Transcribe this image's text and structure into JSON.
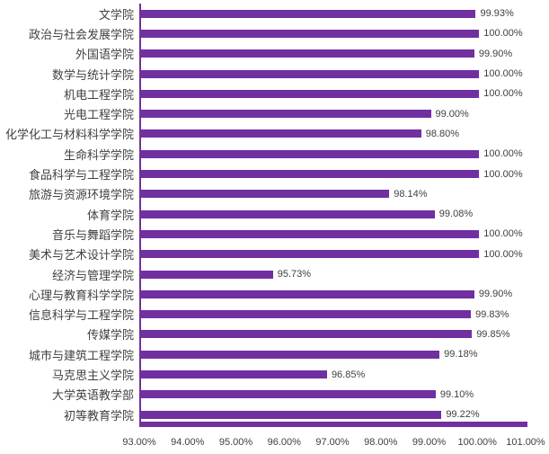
{
  "chart_data": {
    "type": "bar",
    "orientation": "horizontal",
    "title": "",
    "xlabel": "",
    "ylabel": "",
    "categories": [
      "文学院",
      "政治与社会发展学院",
      "外国语学院",
      "数学与统计学院",
      "机电工程学院",
      "光电工程学院",
      "化学化工与材料科学学院",
      "生命科学学院",
      "食品科学与工程学院",
      "旅游与资源环境学院",
      "体育学院",
      "音乐与舞蹈学院",
      "美术与艺术设计学院",
      "经济与管理学院",
      "心理与教育科学学院",
      "信息科学与工程学院",
      "传媒学院",
      "城市与建筑工程学院",
      "马克思主义学院",
      "大学英语教学部",
      "初等教育学院"
    ],
    "values": [
      99.93,
      100.0,
      99.9,
      100.0,
      100.0,
      99.0,
      98.8,
      100.0,
      100.0,
      98.14,
      99.08,
      100.0,
      100.0,
      95.73,
      99.9,
      99.83,
      99.85,
      99.18,
      96.85,
      99.1,
      99.22
    ],
    "value_labels": [
      "99.93%",
      "100.00%",
      "99.90%",
      "100.00%",
      "100.00%",
      "99.00%",
      "98.80%",
      "100.00%",
      "100.00%",
      "98.14%",
      "99.08%",
      "100.00%",
      "100.00%",
      "95.73%",
      "99.90%",
      "99.83%",
      "99.85%",
      "99.18%",
      "96.85%",
      "99.10%",
      "99.22%"
    ],
    "xlim": [
      93,
      101
    ],
    "x_tick_labels": [
      "93.00%",
      "94.00%",
      "95.00%",
      "96.00%",
      "97.00%",
      "98.00%",
      "99.00%",
      "100.00%",
      "101.00%"
    ],
    "bar_color": "#7030A0",
    "axis_color": "#7030A0",
    "label_color": "#404040",
    "grid": false,
    "legend": false,
    "data_labels": true
  }
}
